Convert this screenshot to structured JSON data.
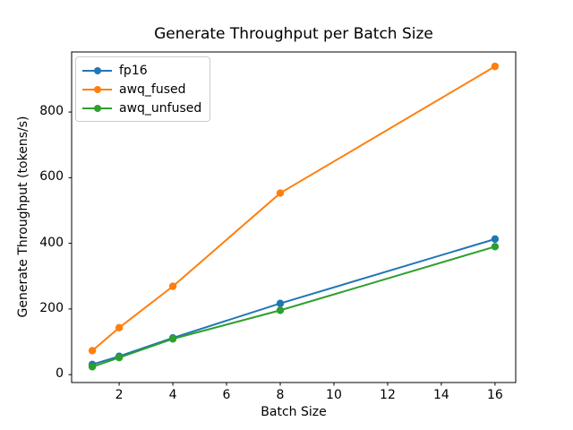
{
  "chart_data": {
    "type": "line",
    "title": "Generate Throughput per Batch Size",
    "xlabel": "Batch Size",
    "ylabel": "Generate Throughput (tokens/s)",
    "x": [
      1,
      2,
      4,
      8,
      16
    ],
    "series": [
      {
        "name": "fp16",
        "color": "#1f77b4",
        "values": [
          31,
          56,
          112,
          217,
          413
        ]
      },
      {
        "name": "awq_fused",
        "color": "#ff7f0e",
        "values": [
          73,
          143,
          269,
          553,
          939
        ]
      },
      {
        "name": "awq_unfused",
        "color": "#2ca02c",
        "values": [
          24,
          52,
          109,
          196,
          390
        ]
      }
    ],
    "xticks": [
      2,
      4,
      6,
      8,
      10,
      12,
      14,
      16
    ],
    "yticks": [
      0,
      200,
      400,
      600,
      800
    ],
    "xlim": [
      0.23,
      16.77
    ],
    "ylim": [
      -24,
      983
    ],
    "grid": false,
    "legend_position": "upper left",
    "marker": "o",
    "line_width": 2,
    "marker_radius": 4.2,
    "spine_color": "#000000"
  }
}
